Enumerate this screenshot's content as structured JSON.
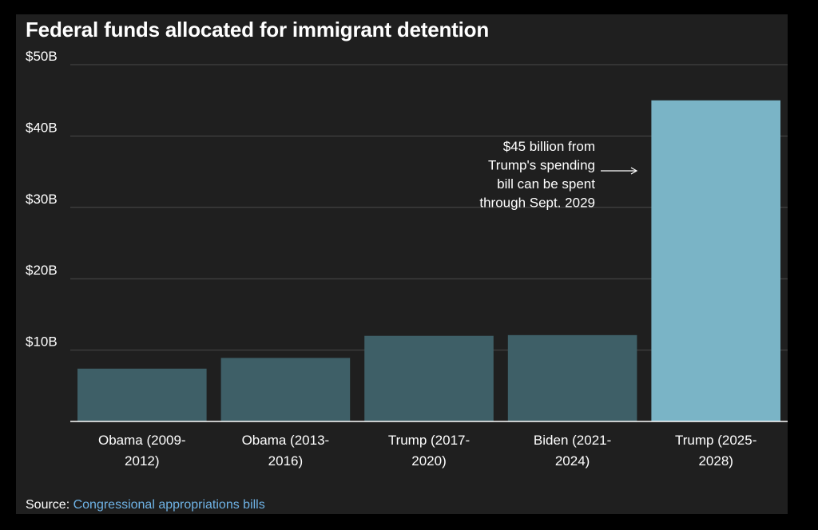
{
  "chart_data": {
    "type": "bar",
    "title": "Federal funds allocated for immigrant detention",
    "categories": [
      [
        "Obama (2009-",
        "2012)"
      ],
      [
        "Obama (2013-",
        "2016)"
      ],
      [
        "Trump (2017-",
        "2020)"
      ],
      [
        "Biden (2021-",
        "2024)"
      ],
      [
        "Trump (2025-",
        "2028)"
      ]
    ],
    "values": [
      7.4,
      8.9,
      12.0,
      12.1,
      45.0
    ],
    "unit": "billion USD",
    "ylim": [
      0,
      50
    ],
    "yticks": [
      {
        "value": 10,
        "label": "$10B"
      },
      {
        "value": 20,
        "label": "$20B"
      },
      {
        "value": 30,
        "label": "$30B"
      },
      {
        "value": 40,
        "label": "$40B"
      },
      {
        "value": 50,
        "label": "$50B"
      }
    ],
    "grid": true,
    "colors": {
      "bar": "#3e5f67",
      "highlight_bar": "#7ab4c6",
      "grid": "#4a4a4a",
      "axis": "#ffffff",
      "text": "#ffffff"
    },
    "highlight_index": 4,
    "annotation": {
      "lines": [
        "$45 billion from",
        "Trump's spending",
        "bill can be spent",
        "through Sept. 2029"
      ],
      "target_index": 4
    }
  },
  "source": {
    "label": "Source:",
    "link_text": "Congressional appropriations bills"
  }
}
